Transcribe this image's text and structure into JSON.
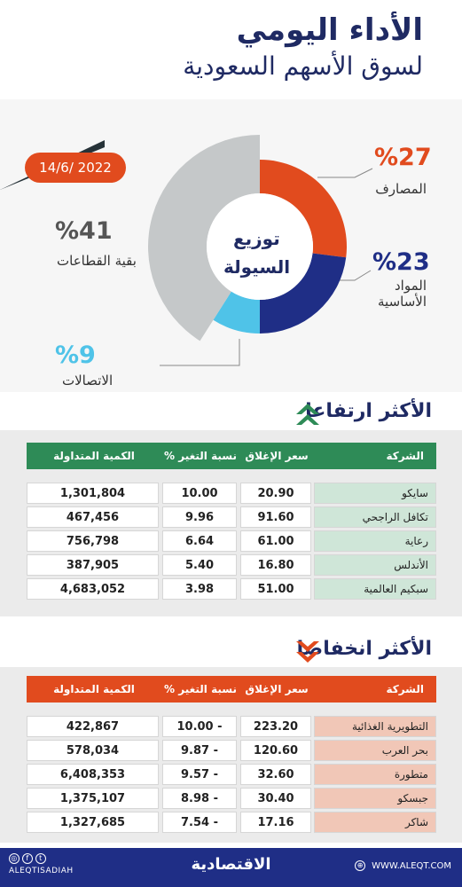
{
  "header": {
    "title_line1": "الأداء اليومي",
    "title_line2": "لسوق الأسهم السعودية"
  },
  "date": "14/6/ 2022",
  "chart_data": {
    "type": "pie",
    "title": "توزيع السيولة",
    "title_line1": "توزيع",
    "title_line2": "السيولة",
    "slices": [
      {
        "name": "المصارف",
        "value": 27,
        "label": "%27",
        "color": "#e14b1e"
      },
      {
        "name": "المواد الأساسية",
        "name_line1": "المواد",
        "name_line2": "الأساسية",
        "value": 23,
        "label": "%23",
        "color": "#1f2e86"
      },
      {
        "name": "الاتصالات",
        "value": 9,
        "label": "%9",
        "color": "#4fc3e8"
      },
      {
        "name": "بقية القطاعات",
        "value": 41,
        "label": "%41",
        "color": "#c5c8c9"
      }
    ]
  },
  "gainers": {
    "title": "الأكثر ارتفاعا",
    "header_color": "#2e8b57",
    "row_color": "#cfe6d8",
    "headers": {
      "company": "الشركة",
      "close": "سعر الإغلاق",
      "change": "نسبة التغير %",
      "volume": "الكمية المتداولة"
    },
    "rows": [
      {
        "company": "سايكو",
        "close": "20.90",
        "change": "10.00",
        "volume": "1,301,804"
      },
      {
        "company": "تكافل الراجحي",
        "close": "91.60",
        "change": "9.96",
        "volume": "467,456"
      },
      {
        "company": "رعاية",
        "close": "61.00",
        "change": "6.64",
        "volume": "756,798"
      },
      {
        "company": "الأندلس",
        "close": "16.80",
        "change": "5.40",
        "volume": "387,905"
      },
      {
        "company": "سبكيم العالمية",
        "close": "51.00",
        "change": "3.98",
        "volume": "4,683,052"
      }
    ]
  },
  "losers": {
    "title": "الأكثر انخفاضا",
    "header_color": "#e14b1e",
    "row_color": "#f1c7b7",
    "headers": {
      "company": "الشركة",
      "close": "سعر الإغلاق",
      "change": "نسبة التغير %",
      "volume": "الكمية المتداولة"
    },
    "rows": [
      {
        "company": "التطويرية الغذائية",
        "close": "223.20",
        "change": "- 10.00",
        "volume": "422,867"
      },
      {
        "company": "بحر العرب",
        "close": "120.60",
        "change": "- 9.87",
        "volume": "578,034"
      },
      {
        "company": "متطورة",
        "close": "32.60",
        "change": "- 9.57",
        "volume": "6,408,353"
      },
      {
        "company": "جبسكو",
        "close": "30.40",
        "change": "- 8.98",
        "volume": "1,375,107"
      },
      {
        "company": "شاكر",
        "close": "17.16",
        "change": "- 7.54",
        "volume": "1,327,685"
      }
    ]
  },
  "footer": {
    "handle": "ALEQTISADIAH",
    "brand": "الاقتصادية",
    "website": "WWW.ALEQT.COM"
  }
}
